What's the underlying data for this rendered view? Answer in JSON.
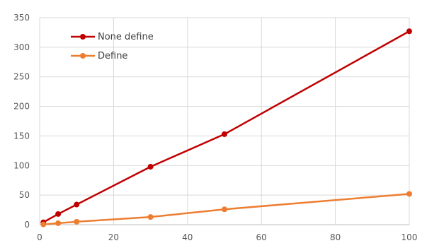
{
  "chart_data": {
    "type": "line",
    "title": "",
    "xlabel": "",
    "ylabel": "",
    "xlim": [
      0,
      100
    ],
    "ylim": [
      0,
      350
    ],
    "x_ticks": [
      0,
      20,
      40,
      60,
      80,
      100
    ],
    "y_ticks": [
      0,
      50,
      100,
      150,
      200,
      250,
      300,
      350
    ],
    "grid": true,
    "legend_position": "top-left",
    "series": [
      {
        "name": "None define",
        "color": "#C00000",
        "x": [
          1,
          5,
          10,
          30,
          50,
          100
        ],
        "y": [
          4,
          18,
          34,
          98,
          153,
          327
        ]
      },
      {
        "name": "Define",
        "color": "#ED7D31",
        "x": [
          1,
          5,
          10,
          30,
          50,
          100
        ],
        "y": [
          0.5,
          2.5,
          5,
          13,
          26,
          52
        ]
      }
    ]
  }
}
